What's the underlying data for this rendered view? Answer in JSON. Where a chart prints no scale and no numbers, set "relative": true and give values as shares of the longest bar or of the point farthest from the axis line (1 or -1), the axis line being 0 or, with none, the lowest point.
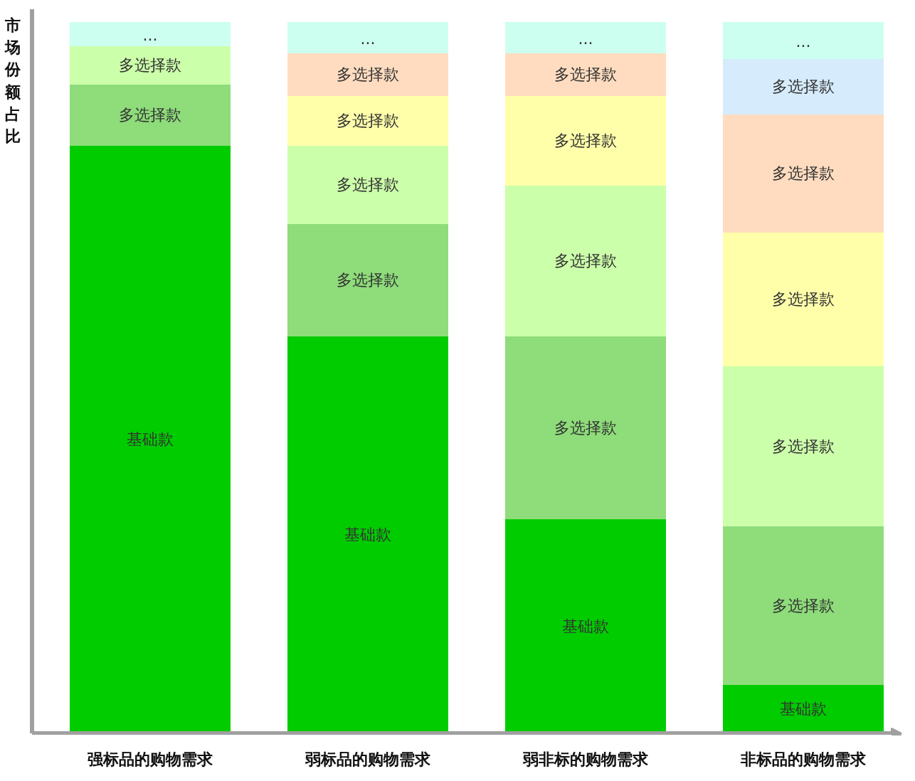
{
  "chart_data": {
    "type": "bar",
    "stacked": true,
    "relative": true,
    "ylabel": "市场份额占比",
    "categories": [
      "强标品的购物需求",
      "弱标品的购物需求",
      "弱非标的购物需求",
      "非标品的购物需求"
    ],
    "series": [
      {
        "name": "基础款",
        "color": "#00cc00",
        "values": [
          0.826,
          0.558,
          0.301,
          0.068
        ]
      },
      {
        "name": "多选择款",
        "color": "#8edc7a",
        "values": [
          0.086,
          0.158,
          0.257,
          0.223
        ]
      },
      {
        "name": "多选择款",
        "color": "#ccffaa",
        "values": [
          0.054,
          0.11,
          0.212,
          0.225
        ]
      },
      {
        "name": "多选择款",
        "color": "#ffffaa",
        "values": [
          null,
          0.07,
          0.126,
          0.188
        ]
      },
      {
        "name": "多选择款",
        "color": "#ffdcbf",
        "values": [
          null,
          0.06,
          0.06,
          0.166
        ]
      },
      {
        "name": "多选择款",
        "color": "#d6ecfc",
        "values": [
          null,
          null,
          null,
          0.078
        ]
      },
      {
        "name": "...",
        "color": "#ccfff0",
        "values": [
          0.034,
          0.044,
          0.044,
          0.052
        ]
      }
    ]
  }
}
